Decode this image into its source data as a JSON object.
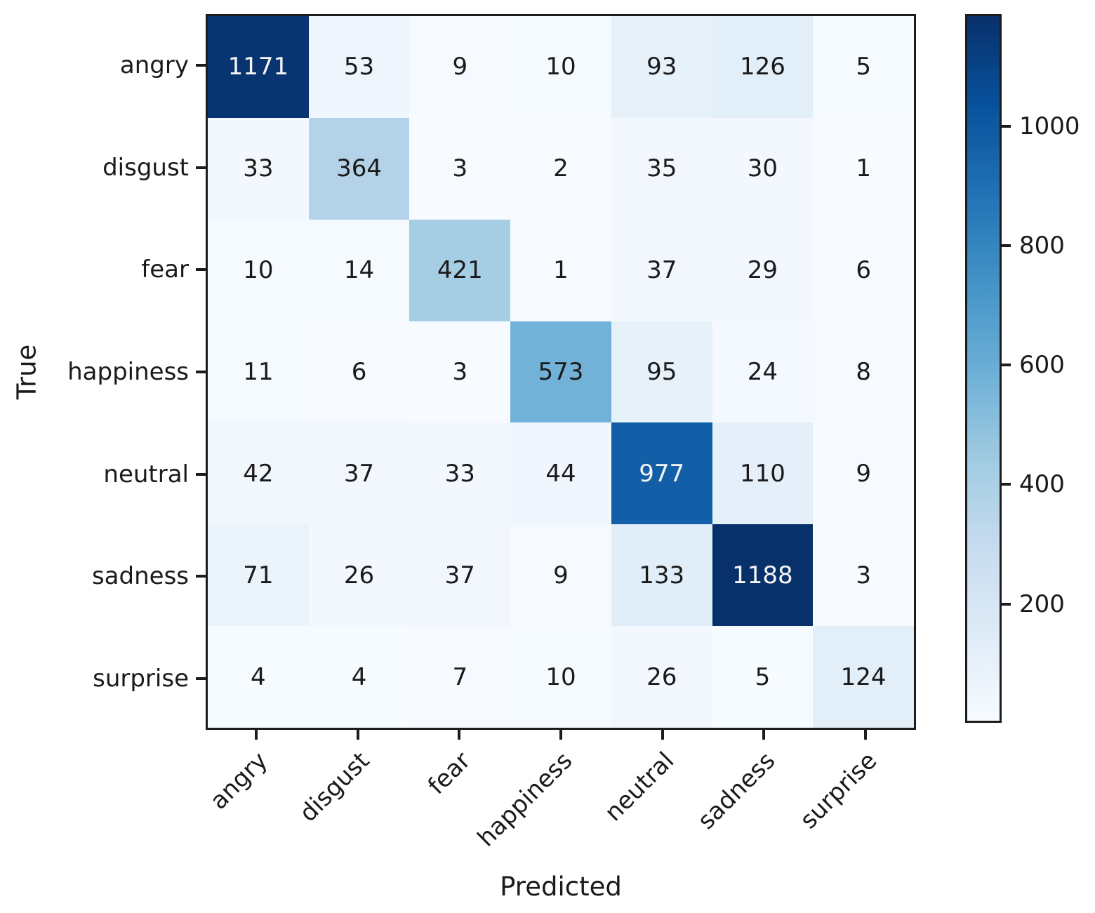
{
  "chart_data": {
    "type": "heatmap",
    "xlabel": "Predicted",
    "ylabel": "True",
    "x_categories": [
      "angry",
      "disgust",
      "fear",
      "happiness",
      "neutral",
      "sadness",
      "surprise"
    ],
    "y_categories": [
      "angry",
      "disgust",
      "fear",
      "happiness",
      "neutral",
      "sadness",
      "surprise"
    ],
    "matrix": [
      [
        1171,
        53,
        9,
        10,
        93,
        126,
        5
      ],
      [
        33,
        364,
        3,
        2,
        35,
        30,
        1
      ],
      [
        10,
        14,
        421,
        1,
        37,
        29,
        6
      ],
      [
        11,
        6,
        3,
        573,
        95,
        24,
        8
      ],
      [
        42,
        37,
        33,
        44,
        977,
        110,
        9
      ],
      [
        71,
        26,
        37,
        9,
        133,
        1188,
        3
      ],
      [
        4,
        4,
        7,
        10,
        26,
        5,
        124
      ]
    ],
    "colormap": "Blues",
    "vmin": 1,
    "vmax": 1188,
    "colorbar_ticks": [
      200,
      400,
      600,
      800,
      1000
    ],
    "colorbar_position": "right",
    "grid": false,
    "annotations": true
  },
  "colors": {
    "cmap_stops": [
      "#f7fbff",
      "#deebf7",
      "#c6dbef",
      "#9ecae1",
      "#6baed6",
      "#4292c6",
      "#2171b5",
      "#08519c",
      "#08306b"
    ],
    "annotation_dark": "#1a1a1a",
    "annotation_light": "#f5f5f5",
    "spine": "#1c1c1c",
    "background": "#ffffff"
  }
}
